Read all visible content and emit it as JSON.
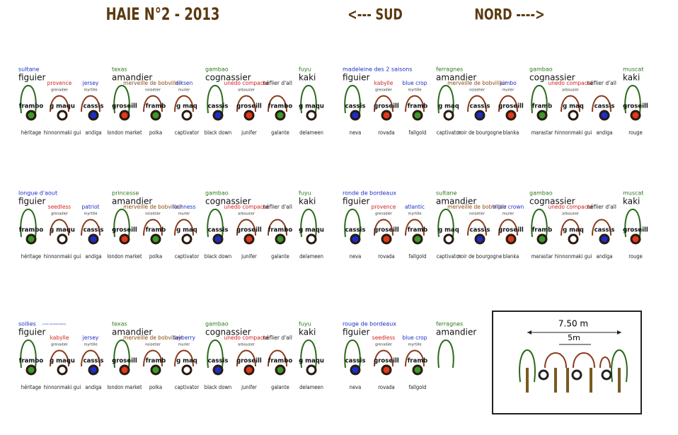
{
  "header": {
    "title": "HAIE N°2 - 2013",
    "south": "<--- SUD",
    "north": "NORD  ---->"
  },
  "blocks": [
    {
      "top": [
        {
          "kind": "tree",
          "variety": "sultane",
          "color": "#1a2fc9",
          "name": "figuier"
        },
        {
          "kind": "shrub",
          "variety": "provence",
          "color": "#d42020",
          "name": "grenadier"
        },
        {
          "kind": "shrub",
          "variety": "jersey",
          "color": "#1a2fc9",
          "name": "myrtille"
        },
        {
          "kind": "tree",
          "variety": "texas",
          "color": "#2a7a1a",
          "name": "amandier"
        },
        {
          "kind": "shrub",
          "variety": "merveille de bobvillair",
          "color": "#8a4a10",
          "name": "noisetier"
        },
        {
          "kind": "shrub",
          "variety": "diksen",
          "color": "#1a2fc9",
          "name": "murier"
        },
        {
          "kind": "tree",
          "variety": "gambao",
          "color": "#2a7a1a",
          "name": "cognassier"
        },
        {
          "kind": "shrub",
          "variety": "unedo compacta",
          "color": "#d42020",
          "name": "arbousier"
        },
        {
          "kind": "shrub",
          "variety": "néflier d'all",
          "color": "#222222"
        },
        {
          "kind": "tree",
          "variety": "fuyu",
          "color": "#2a7a1a",
          "name": "kaki"
        }
      ],
      "row": [
        {
          "code": "frambo",
          "dot": "#3a9a2a",
          "cultivar": "héritage"
        },
        {
          "code": "g maqu",
          "dot": "#ffffff",
          "cultivar": "hinnonmaki gui"
        },
        {
          "code": "cassis",
          "dot": "#1a2fc9",
          "cultivar": "andiga"
        },
        {
          "code": "groseill",
          "dot": "#e03a1a",
          "cultivar": "london market"
        },
        {
          "code": "framb",
          "dot": "#3a9a2a",
          "cultivar": "polka"
        },
        {
          "code": "g maq",
          "dot": "#ffffff",
          "cultivar": "captivator"
        },
        {
          "code": "cassis",
          "dot": "#1a2fc9",
          "cultivar": "black down"
        },
        {
          "code": "groseill",
          "dot": "#e03a1a",
          "cultivar": "junifer"
        },
        {
          "code": "frambo",
          "dot": "#3a9a2a",
          "cultivar": "galante"
        },
        {
          "code": "g maqu",
          "dot": "#ffffff",
          "cultivar": "delameen"
        }
      ]
    },
    {
      "top": [
        {
          "kind": "tree",
          "variety": "madeleine des 2 saisons",
          "color": "#1a2fc9",
          "name": "figuier"
        },
        {
          "kind": "shrub",
          "variety": "kabylle",
          "color": "#d42020",
          "name": "grenadier"
        },
        {
          "kind": "shrub",
          "variety": "blue crop",
          "color": "#1a2fc9",
          "name": "myrtille"
        },
        {
          "kind": "tree",
          "variety": "ferragnes",
          "color": "#2a7a1a",
          "name": "amandier"
        },
        {
          "kind": "shrub",
          "variety": "merveille de bobvillair",
          "color": "#8a4a10",
          "name": "noisetier"
        },
        {
          "kind": "shrub",
          "variety": "jumbo",
          "color": "#1a2fc9",
          "name": "murier"
        },
        {
          "kind": "tree",
          "variety": "gambao",
          "color": "#2a7a1a",
          "name": "cognassier"
        },
        {
          "kind": "shrub",
          "variety": "unedo compacta",
          "color": "#d42020",
          "name": "arbousier"
        },
        {
          "kind": "shrub",
          "variety": "néflier d'all",
          "color": "#222222"
        },
        {
          "kind": "tree",
          "variety": "muscat",
          "color": "#2a7a1a",
          "name": "kaki"
        }
      ],
      "row": [
        {
          "code": "cassis",
          "dot": "#1a2fc9",
          "cultivar": "neva"
        },
        {
          "code": "groseill",
          "dot": "#e03a1a",
          "cultivar": "rovada"
        },
        {
          "code": "framb",
          "dot": "#3a9a2a",
          "cultivar": "fallgold"
        },
        {
          "code": "g maq",
          "dot": "#ffffff",
          "cultivar": "captivator"
        },
        {
          "code": "cassis",
          "dot": "#1a2fc9",
          "cultivar": "noir de bourgogne"
        },
        {
          "code": "groseill",
          "dot": "#e03a1a",
          "cultivar": "blanka"
        },
        {
          "code": "framb",
          "dot": "#3a9a2a",
          "cultivar": "marastar"
        },
        {
          "code": "g maq",
          "dot": "#ffffff",
          "cultivar": "hinnonmaki gui"
        },
        {
          "code": "cassis",
          "dot": "#1a2fc9",
          "cultivar": "andiga"
        },
        {
          "code": "groseill",
          "dot": "#e03a1a",
          "cultivar": "rouge"
        }
      ]
    },
    {
      "top": [
        {
          "kind": "tree",
          "variety": "longue d'aout",
          "color": "#1a2fc9",
          "name": "figuier"
        },
        {
          "kind": "shrub",
          "variety": "seedless",
          "color": "#d42020",
          "name": "grenadier"
        },
        {
          "kind": "shrub",
          "variety": "patriot",
          "color": "#1a2fc9",
          "name": "myrtille"
        },
        {
          "kind": "tree",
          "variety": "princesse",
          "color": "#2a7a1a",
          "name": "amandier"
        },
        {
          "kind": "shrub",
          "variety": "merveille de bobvillair",
          "color": "#8a4a10",
          "name": "noisetier"
        },
        {
          "kind": "shrub",
          "variety": "lochness",
          "color": "#1a2fc9",
          "name": "murier"
        },
        {
          "kind": "tree",
          "variety": "gambao",
          "color": "#2a7a1a",
          "name": "cognassier"
        },
        {
          "kind": "shrub",
          "variety": "unedo compacta",
          "color": "#d42020",
          "name": "arbousier"
        },
        {
          "kind": "shrub",
          "variety": "néflier d'all",
          "color": "#222222"
        },
        {
          "kind": "tree",
          "variety": "fuyu",
          "color": "#2a7a1a",
          "name": "kaki"
        }
      ],
      "row": [
        {
          "code": "frambo",
          "dot": "#3a9a2a",
          "cultivar": "héritage"
        },
        {
          "code": "g maqu",
          "dot": "#ffffff",
          "cultivar": "hinnonmaki gui"
        },
        {
          "code": "cassis",
          "dot": "#1a2fc9",
          "cultivar": "andiga"
        },
        {
          "code": "groseill",
          "dot": "#e03a1a",
          "cultivar": "london market"
        },
        {
          "code": "framb",
          "dot": "#3a9a2a",
          "cultivar": "polka"
        },
        {
          "code": "g maq",
          "dot": "#ffffff",
          "cultivar": "captivator"
        },
        {
          "code": "cassis",
          "dot": "#1a2fc9",
          "cultivar": "black down"
        },
        {
          "code": "groseill",
          "dot": "#e03a1a",
          "cultivar": "junifer"
        },
        {
          "code": "frambo",
          "dot": "#3a9a2a",
          "cultivar": "galante"
        },
        {
          "code": "g maqu",
          "dot": "#ffffff",
          "cultivar": "delameen"
        }
      ]
    },
    {
      "top": [
        {
          "kind": "tree",
          "variety": "ronde de bordeaux",
          "color": "#1a2fc9",
          "name": "figuier"
        },
        {
          "kind": "shrub",
          "variety": "provence",
          "color": "#d42020",
          "name": "grenadier"
        },
        {
          "kind": "shrub",
          "variety": "atlantic",
          "color": "#1a2fc9",
          "name": "myrtille"
        },
        {
          "kind": "tree",
          "variety": "sultane",
          "color": "#2a7a1a",
          "name": "amandier"
        },
        {
          "kind": "shrub",
          "variety": "merveille de bobvillair",
          "color": "#8a4a10",
          "name": "noisetier"
        },
        {
          "kind": "shrub",
          "variety": "triple crown",
          "color": "#1a2fc9",
          "name": "murier"
        },
        {
          "kind": "tree",
          "variety": "gambao",
          "color": "#2a7a1a",
          "name": "cognassier"
        },
        {
          "kind": "shrub",
          "variety": "unedo compacta",
          "color": "#d42020",
          "name": "arbousier"
        },
        {
          "kind": "shrub",
          "variety": "néflier d'all",
          "color": "#222222"
        },
        {
          "kind": "tree",
          "variety": "muscat",
          "color": "#2a7a1a",
          "name": "kaki"
        }
      ],
      "row": [
        {
          "code": "cassis",
          "dot": "#1a2fc9",
          "cultivar": "neva"
        },
        {
          "code": "groseill",
          "dot": "#e03a1a",
          "cultivar": "rovada"
        },
        {
          "code": "framb",
          "dot": "#3a9a2a",
          "cultivar": "fallgold"
        },
        {
          "code": "g maq",
          "dot": "#ffffff",
          "cultivar": "captivator"
        },
        {
          "code": "cassis",
          "dot": "#1a2fc9",
          "cultivar": "noir de bourgogne"
        },
        {
          "code": "groseill",
          "dot": "#e03a1a",
          "cultivar": "blanka"
        },
        {
          "code": "framb",
          "dot": "#3a9a2a",
          "cultivar": "marastar"
        },
        {
          "code": "g maq",
          "dot": "#ffffff",
          "cultivar": "hinnonmaki gui"
        },
        {
          "code": "cassis",
          "dot": "#1a2fc9",
          "cultivar": "andiga"
        },
        {
          "code": "groseill",
          "dot": "#e03a1a",
          "cultivar": "rouge"
        }
      ]
    },
    {
      "top": [
        {
          "kind": "tree",
          "variety": "sollies",
          "note": "(noire de barbentane)",
          "color": "#1a2fc9",
          "name": "figuier"
        },
        {
          "kind": "shrub",
          "variety": "kabylle",
          "color": "#d42020",
          "name": "grenadier"
        },
        {
          "kind": "shrub",
          "variety": "jersey",
          "color": "#1a2fc9",
          "name": "myrtille"
        },
        {
          "kind": "tree",
          "variety": "texas",
          "color": "#2a7a1a",
          "name": "amandier"
        },
        {
          "kind": "shrub",
          "variety": "merveille de bobvillair",
          "color": "#8a4a10",
          "name": "noisetier"
        },
        {
          "kind": "shrub",
          "variety": "tayberry",
          "color": "#1a2fc9",
          "name": "murier"
        },
        {
          "kind": "tree",
          "variety": "gambao",
          "color": "#2a7a1a",
          "name": "cognassier"
        },
        {
          "kind": "shrub",
          "variety": "unedo compacta",
          "color": "#d42020",
          "name": "arbousier"
        },
        {
          "kind": "shrub",
          "variety": "néflier d'all",
          "color": "#222222"
        },
        {
          "kind": "tree",
          "variety": "fuyu",
          "color": "#2a7a1a",
          "name": "kaki"
        }
      ],
      "row": [
        {
          "code": "frambo",
          "dot": "#3a9a2a",
          "cultivar": "héritage"
        },
        {
          "code": "g maqu",
          "dot": "#ffffff",
          "cultivar": "hinnonmaki gui"
        },
        {
          "code": "cassis",
          "dot": "#1a2fc9",
          "cultivar": "andiga"
        },
        {
          "code": "groseill",
          "dot": "#e03a1a",
          "cultivar": "london market"
        },
        {
          "code": "framb",
          "dot": "#3a9a2a",
          "cultivar": "polka"
        },
        {
          "code": "g maq",
          "dot": "#ffffff",
          "cultivar": "captivator"
        },
        {
          "code": "cassis",
          "dot": "#1a2fc9",
          "cultivar": "black down"
        },
        {
          "code": "groseill",
          "dot": "#e03a1a",
          "cultivar": "junifer"
        },
        {
          "code": "frambo",
          "dot": "#3a9a2a",
          "cultivar": "galante"
        },
        {
          "code": "g maqu",
          "dot": "#ffffff",
          "cultivar": "delameen"
        }
      ]
    },
    {
      "top": [
        {
          "kind": "tree",
          "variety": "rouge de bordeaux",
          "color": "#1a2fc9",
          "name": "figuier"
        },
        {
          "kind": "shrub",
          "variety": "seedless",
          "color": "#d42020",
          "name": "grenadier"
        },
        {
          "kind": "shrub",
          "variety": "blue crop",
          "color": "#1a2fc9",
          "name": "myrtille"
        },
        {
          "kind": "tree",
          "variety": "ferragnes",
          "color": "#2a7a1a",
          "name": "amandier"
        }
      ],
      "row": [
        {
          "code": "cassis",
          "dot": "#1a2fc9",
          "cultivar": "neva"
        },
        {
          "code": "groseill",
          "dot": "#e03a1a",
          "cultivar": "rovada"
        },
        {
          "code": "framb",
          "dot": "#3a9a2a",
          "cultivar": "fallgold"
        }
      ]
    }
  ],
  "legend": {
    "outer": "7.50 m",
    "inner": "5m"
  }
}
